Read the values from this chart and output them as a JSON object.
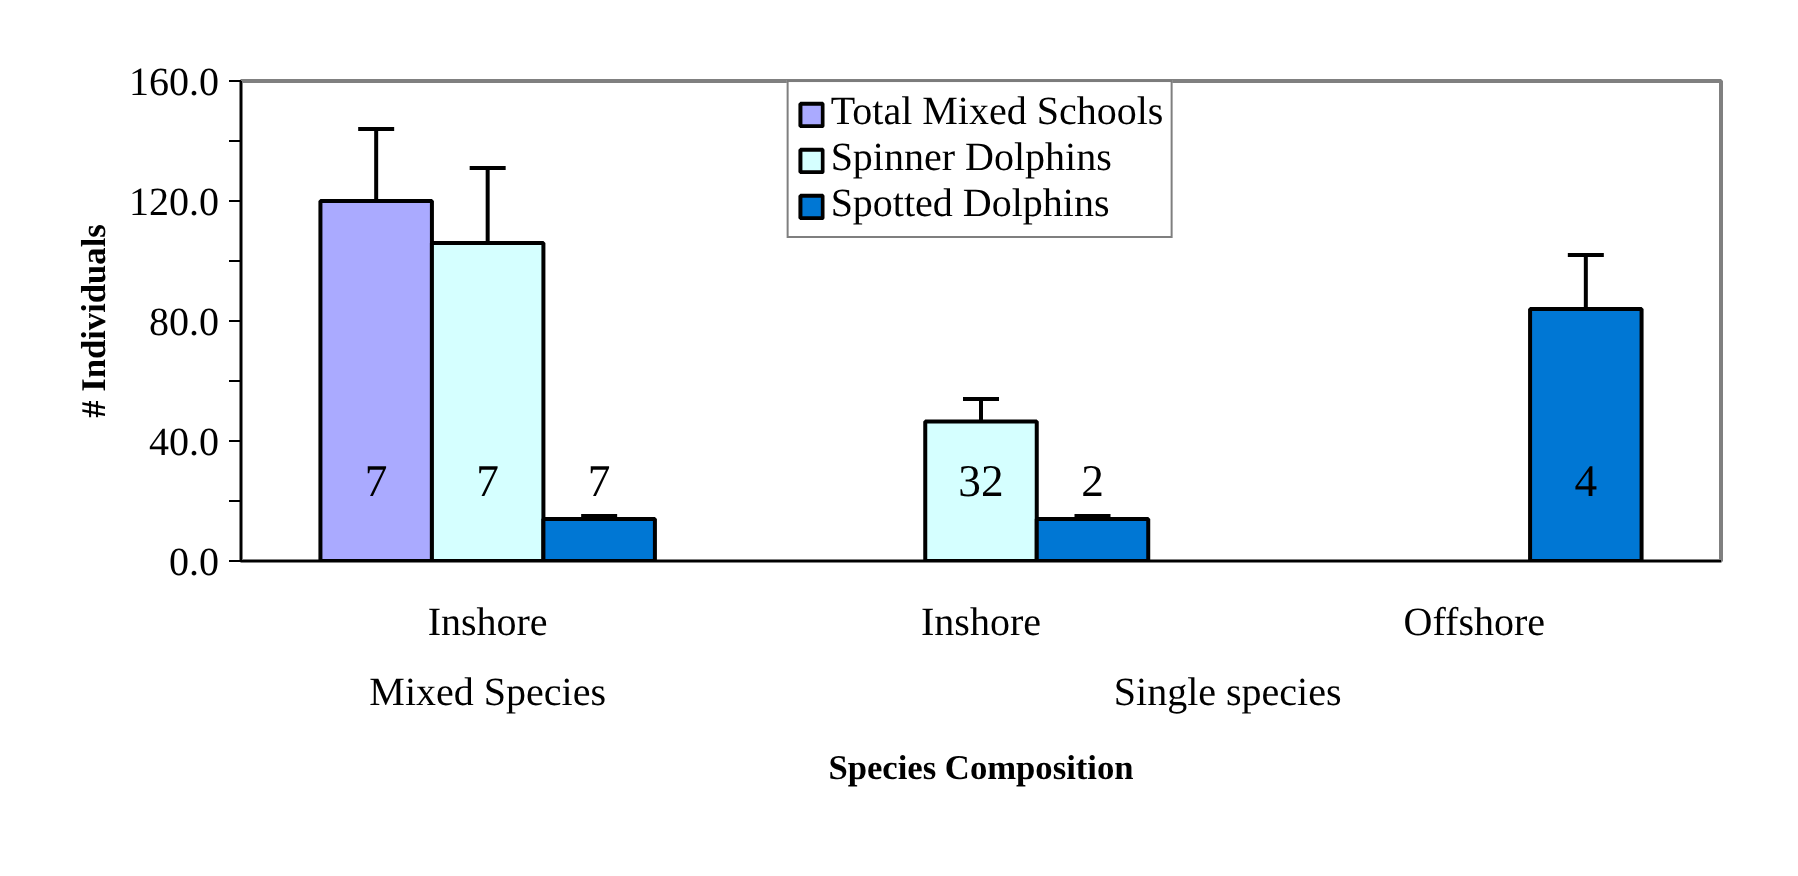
{
  "chart_data": {
    "type": "bar",
    "xlabel": "Species Composition",
    "ylabel": "# Individuals",
    "categories": [
      "Inshore",
      "Inshore",
      "Offshore"
    ],
    "annotations": [
      "7",
      "7",
      "7",
      "32",
      "2",
      "4",
      "Mixed Species",
      "Single species"
    ],
    "series": [
      {
        "name": "Total Mixed Schools",
        "color": "#aaaaff",
        "values": [
          120,
          null,
          null
        ],
        "errors": [
          [
            120,
            144
          ],
          null,
          null
        ]
      },
      {
        "name": "Spinner Dolphins",
        "color": "#d5ffff",
        "values": [
          106,
          46.5,
          null
        ],
        "errors": [
          [
            106,
            131
          ],
          [
            46.5,
            54
          ],
          null
        ]
      },
      {
        "name": "Spotted Dolphins",
        "color": "#0077d4",
        "values": [
          14,
          14,
          84
        ],
        "errors": [
          [
            14,
            15
          ],
          [
            14,
            15
          ],
          [
            84,
            102
          ]
        ]
      }
    ],
    "ylim": [
      0,
      160
    ],
    "yticks": [
      {
        "value": 0,
        "label": "0.0"
      },
      {
        "value": 20,
        "label": null
      },
      {
        "value": 40,
        "label": "40.0"
      },
      {
        "value": 60,
        "label": null
      },
      {
        "value": 80,
        "label": "80.0"
      },
      {
        "value": 100,
        "label": null
      },
      {
        "value": 120,
        "label": "120.0"
      },
      {
        "value": 140,
        "label": null
      },
      {
        "value": 160,
        "label": "160.0"
      }
    ],
    "grid": false,
    "legend": "top"
  }
}
